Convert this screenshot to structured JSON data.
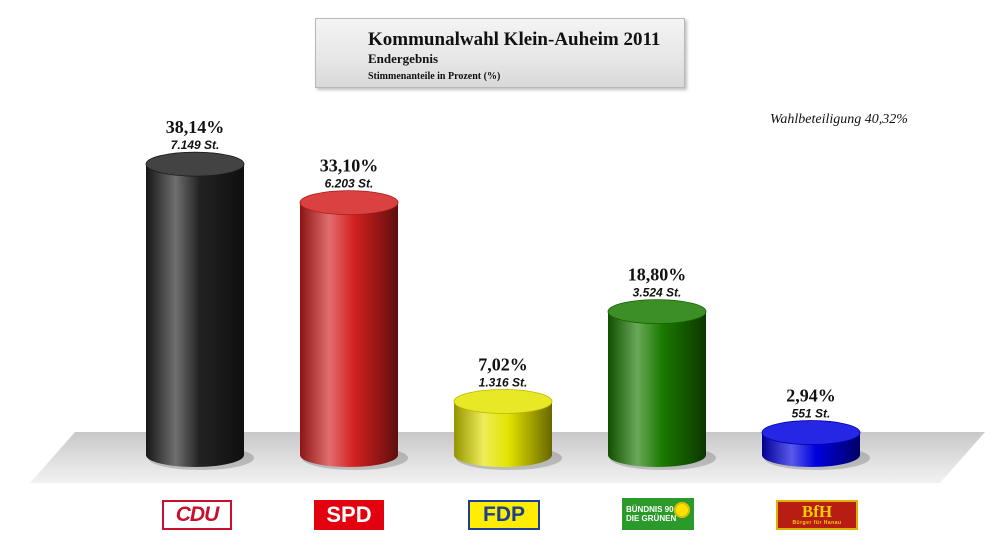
{
  "chart_data": {
    "type": "bar",
    "title": "Kommunalwahl Klein-Auheim 2011",
    "subtitle": "Endergebnis",
    "subtitle2": "Stimmenanteile in Prozent (%)",
    "annotation": "Wahlbeteiligung 40,32%",
    "ylim": [
      0,
      40
    ],
    "grid": false,
    "categories": [
      "CDU",
      "SPD",
      "FDP",
      "BÜNDNIS 90 DIE GRÜNEN",
      "BfH"
    ],
    "values": [
      38.14,
      33.1,
      7.02,
      18.8,
      2.94
    ],
    "value_labels": [
      "38,14%",
      "33,10%",
      "7,02%",
      "18,80%",
      "2,94%"
    ],
    "votes": [
      7149,
      6203,
      1316,
      3524,
      551
    ],
    "vote_labels": [
      "7.149 St.",
      "6.203 St.",
      "1.316 St.",
      "3.524 St.",
      "551 St."
    ],
    "colors": [
      "#222222",
      "#d42020",
      "#e4e400",
      "#1a7a00",
      "#0000e0"
    ]
  },
  "logos": {
    "cdu": "CDU",
    "spd": "SPD",
    "fdp": "FDP",
    "gruene_line1": "BÜNDNIS 90",
    "gruene_line2": "DIE GRÜNEN",
    "bfh": "BfH",
    "bfh_sub": "Bürger für Hanau"
  }
}
